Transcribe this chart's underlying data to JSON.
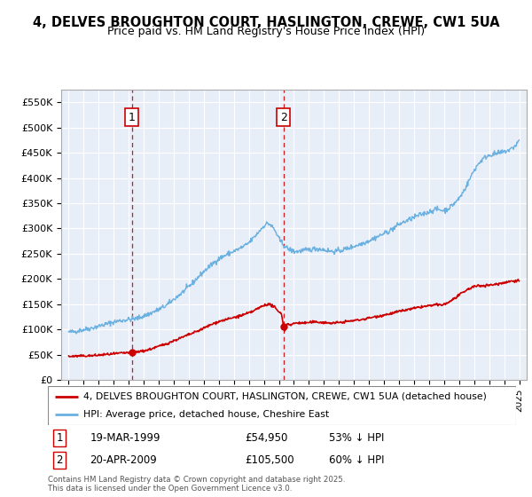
{
  "title": "4, DELVES BROUGHTON COURT, HASLINGTON, CREWE, CW1 5UA",
  "subtitle": "Price paid vs. HM Land Registry's House Price Index (HPI)",
  "legend_line1": "4, DELVES BROUGHTON COURT, HASLINGTON, CREWE, CW1 5UA (detached house)",
  "legend_line2": "HPI: Average price, detached house, Cheshire East",
  "annotation1_date": "19-MAR-1999",
  "annotation1_price": "£54,950",
  "annotation1_hpi": "53% ↓ HPI",
  "annotation2_date": "20-APR-2009",
  "annotation2_price": "£105,500",
  "annotation2_hpi": "60% ↓ HPI",
  "footer": "Contains HM Land Registry data © Crown copyright and database right 2025.\nThis data is licensed under the Open Government Licence v3.0.",
  "hpi_color": "#6ab0e0",
  "price_color": "#cc0000",
  "annotation_color": "#cc0000",
  "plot_bg_color": "#e8eef8",
  "ylim": [
    0,
    575000
  ],
  "yticks": [
    0,
    50000,
    100000,
    150000,
    200000,
    250000,
    300000,
    350000,
    400000,
    450000,
    500000,
    550000
  ],
  "ytick_labels": [
    "£0",
    "£50K",
    "£100K",
    "£150K",
    "£200K",
    "£250K",
    "£300K",
    "£350K",
    "£400K",
    "£450K",
    "£500K",
    "£550K"
  ],
  "sale1_x": 1999.21,
  "sale1_y": 54950,
  "sale2_x": 2009.3,
  "sale2_y": 105500,
  "xlim": [
    1994.5,
    2025.5
  ],
  "hpi_points_x": [
    1995.0,
    1995.5,
    1996.0,
    1996.5,
    1997.0,
    1997.5,
    1998.0,
    1998.5,
    1999.0,
    1999.5,
    2000.0,
    2000.5,
    2001.0,
    2001.5,
    2002.0,
    2002.5,
    2003.0,
    2003.5,
    2004.0,
    2004.5,
    2005.0,
    2005.5,
    2006.0,
    2006.5,
    2007.0,
    2007.5,
    2008.0,
    2008.25,
    2008.5,
    2008.75,
    2009.0,
    2009.25,
    2009.5,
    2009.75,
    2010.0,
    2010.5,
    2011.0,
    2011.5,
    2012.0,
    2012.5,
    2013.0,
    2013.5,
    2014.0,
    2014.5,
    2015.0,
    2015.5,
    2016.0,
    2016.5,
    2017.0,
    2017.5,
    2018.0,
    2018.5,
    2019.0,
    2019.5,
    2020.0,
    2020.5,
    2021.0,
    2021.5,
    2022.0,
    2022.5,
    2023.0,
    2023.5,
    2024.0,
    2024.5,
    2025.0
  ],
  "hpi_points_y": [
    95000,
    97000,
    100000,
    103000,
    107000,
    111000,
    115000,
    118000,
    120000,
    122000,
    127000,
    133000,
    140000,
    148000,
    160000,
    172000,
    185000,
    200000,
    215000,
    228000,
    240000,
    248000,
    255000,
    262000,
    272000,
    288000,
    305000,
    310000,
    305000,
    295000,
    280000,
    270000,
    262000,
    258000,
    255000,
    256000,
    258000,
    260000,
    258000,
    255000,
    256000,
    260000,
    265000,
    270000,
    276000,
    283000,
    290000,
    298000,
    308000,
    315000,
    322000,
    328000,
    333000,
    338000,
    336000,
    345000,
    360000,
    385000,
    415000,
    435000,
    445000,
    448000,
    452000,
    458000,
    475000
  ],
  "price_points_x": [
    1995.0,
    1995.5,
    1996.0,
    1996.5,
    1997.0,
    1997.5,
    1998.0,
    1998.5,
    1999.0,
    1999.21,
    1999.5,
    2000.0,
    2000.5,
    2001.0,
    2001.5,
    2002.0,
    2002.5,
    2003.0,
    2003.5,
    2004.0,
    2004.5,
    2005.0,
    2005.5,
    2006.0,
    2006.5,
    2007.0,
    2007.5,
    2008.0,
    2008.25,
    2008.5,
    2008.75,
    2009.0,
    2009.25,
    2009.3,
    2009.5,
    2009.75,
    2010.0,
    2010.5,
    2011.0,
    2011.5,
    2012.0,
    2012.5,
    2013.0,
    2013.5,
    2014.0,
    2014.5,
    2015.0,
    2015.5,
    2016.0,
    2016.5,
    2017.0,
    2017.5,
    2018.0,
    2018.5,
    2019.0,
    2019.5,
    2020.0,
    2020.5,
    2021.0,
    2021.5,
    2022.0,
    2022.5,
    2023.0,
    2023.5,
    2024.0,
    2024.5,
    2025.0
  ],
  "price_points_y": [
    47000,
    47500,
    48000,
    48500,
    49500,
    51000,
    52000,
    53500,
    54500,
    54950,
    56000,
    58000,
    62000,
    67000,
    72000,
    78000,
    84000,
    90000,
    96000,
    103000,
    110000,
    116000,
    120000,
    124000,
    128000,
    133000,
    140000,
    148000,
    150000,
    148000,
    143000,
    135000,
    118000,
    105500,
    108000,
    110000,
    112000,
    113000,
    114000,
    115000,
    114000,
    113000,
    114000,
    116000,
    118000,
    120000,
    123000,
    126000,
    129000,
    132000,
    136000,
    139000,
    142000,
    145000,
    147000,
    149000,
    150000,
    158000,
    168000,
    178000,
    185000,
    187000,
    188000,
    190000,
    193000,
    196000,
    197000
  ]
}
